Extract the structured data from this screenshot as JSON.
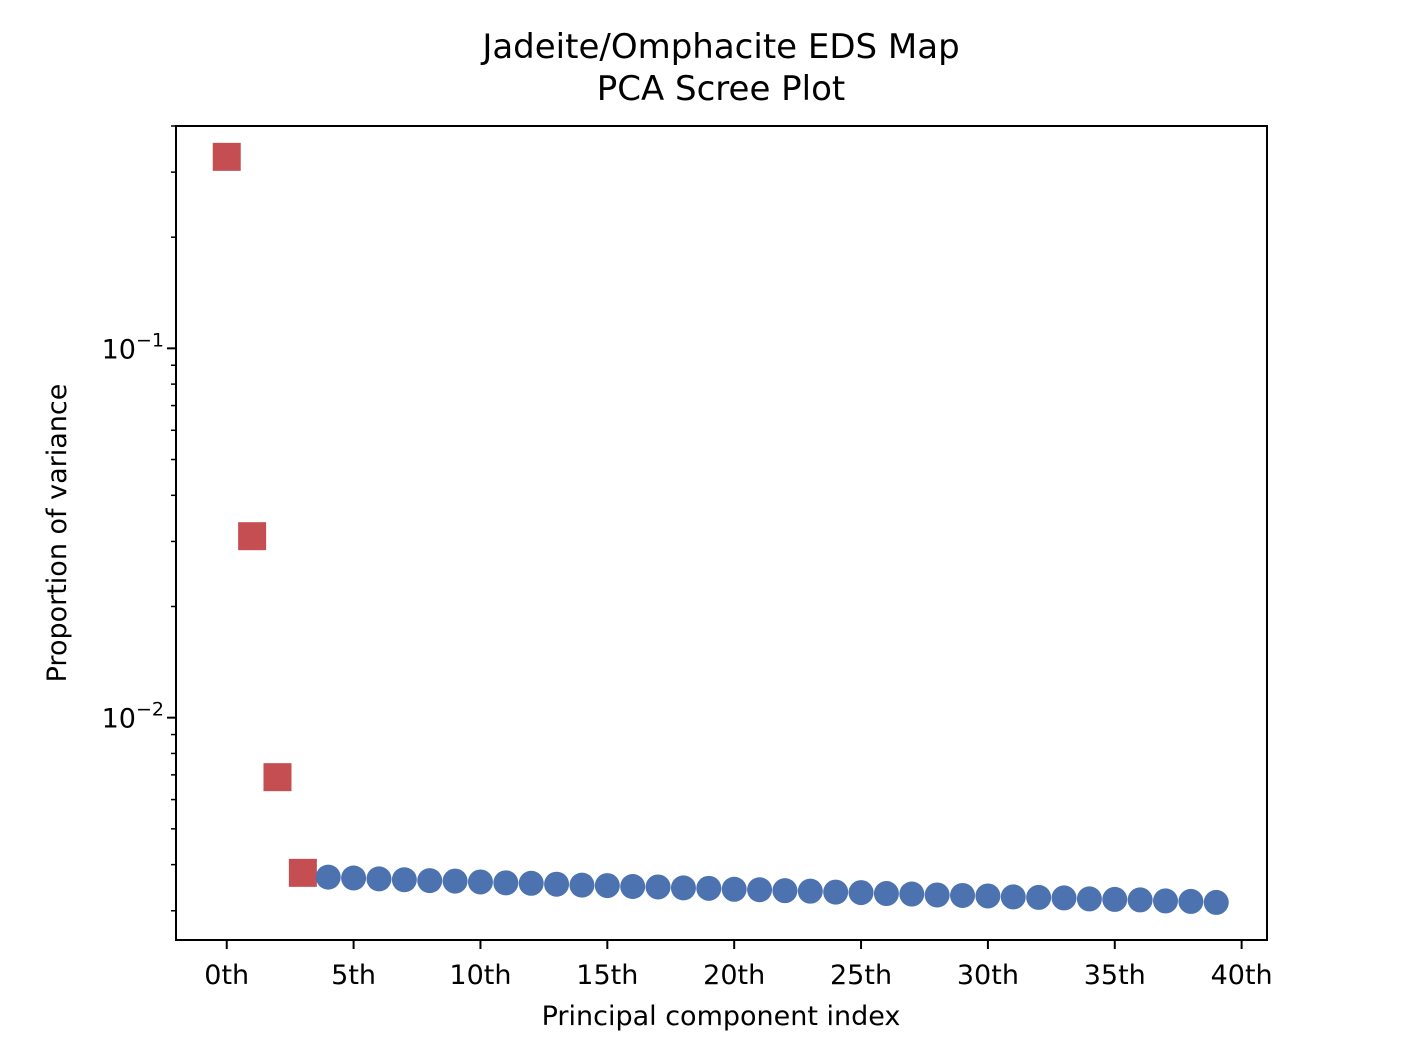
{
  "chart_data": {
    "type": "scatter",
    "title": "Jadeite/Omphacite EDS Map",
    "subtitle": "PCA Scree Plot",
    "xlabel": "Principal component index",
    "ylabel": "Proportion of variance",
    "yscale": "log",
    "xlim": [
      -2,
      41
    ],
    "ylim": [
      0.0025,
      0.4
    ],
    "grid": false,
    "x_ticks": [
      {
        "value": 0,
        "label": "0th"
      },
      {
        "value": 5,
        "label": "5th"
      },
      {
        "value": 10,
        "label": "10th"
      },
      {
        "value": 15,
        "label": "15th"
      },
      {
        "value": 20,
        "label": "20th"
      },
      {
        "value": 25,
        "label": "25th"
      },
      {
        "value": 30,
        "label": "30th"
      },
      {
        "value": 35,
        "label": "35th"
      },
      {
        "value": 40,
        "label": "40th"
      }
    ],
    "y_ticks": [
      {
        "value": 0.1,
        "base": "10",
        "exp": "−1"
      },
      {
        "value": 0.01,
        "base": "10",
        "exp": "−2"
      }
    ],
    "series": [
      {
        "marker": "square",
        "color": "#c44e52",
        "x": [
          0,
          1,
          2,
          3
        ],
        "y": [
          0.33,
          0.031,
          0.0069,
          0.0038
        ]
      },
      {
        "marker": "circle",
        "color": "#4c72b0",
        "x": [
          4,
          5,
          6,
          7,
          8,
          9,
          10,
          11,
          12,
          13,
          14,
          15,
          16,
          17,
          18,
          19,
          20,
          21,
          22,
          23,
          24,
          25,
          26,
          27,
          28,
          29,
          30,
          31,
          32,
          33,
          34,
          35,
          36,
          37,
          38,
          39
        ],
        "y": [
          0.0037,
          0.00368,
          0.00366,
          0.00364,
          0.00362,
          0.00361,
          0.00359,
          0.00357,
          0.00356,
          0.00354,
          0.00352,
          0.00351,
          0.00349,
          0.00348,
          0.00346,
          0.00345,
          0.00343,
          0.00342,
          0.0034,
          0.00339,
          0.00337,
          0.00336,
          0.00334,
          0.00333,
          0.00331,
          0.0033,
          0.00329,
          0.00327,
          0.00326,
          0.00325,
          0.00323,
          0.00322,
          0.00321,
          0.00319,
          0.00318,
          0.00316
        ]
      }
    ]
  }
}
